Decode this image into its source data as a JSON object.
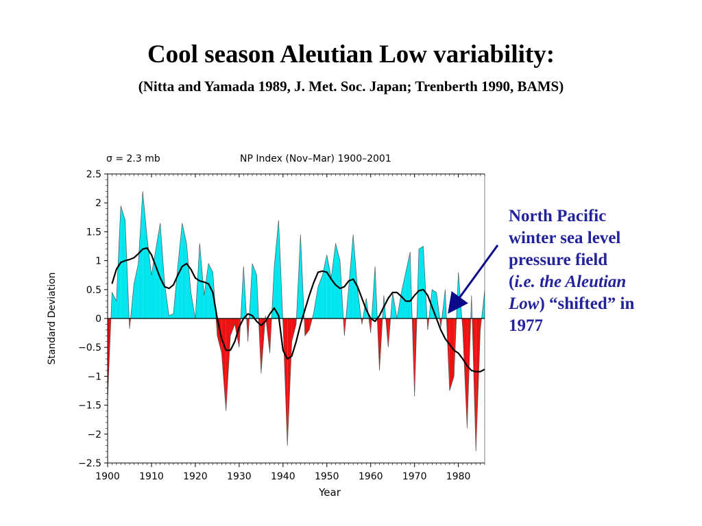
{
  "slide": {
    "title": "Cool season Aleutian Low variability:",
    "subtitle": "(Nitta and Yamada 1989, J. Met. Soc. Japan; Trenberth 1990, BAMS)"
  },
  "annotation": {
    "line1": "North Pacific",
    "line2": "winter sea level",
    "line3": "pressure field",
    "open_paren": "(",
    "ie_aleutian": "i.e. the Aleutian",
    "low": "Low",
    "shifted": ") “shifted” in",
    "year": "1977",
    "color": "#22229a"
  },
  "chart_data": {
    "type": "area",
    "title": "NP Index  (Nov–Mar) 1900–2001",
    "sigma_label": "σ = 2.3 mb",
    "xlabel": "Year",
    "ylabel": "Standard Deviation",
    "xlim": [
      1900,
      1986
    ],
    "ylim": [
      -2.5,
      2.5
    ],
    "xticks": [
      1900,
      1910,
      1920,
      1930,
      1940,
      1950,
      1960,
      1970,
      1980
    ],
    "yticks": [
      2.5,
      2,
      1.5,
      1,
      0.5,
      0,
      -0.5,
      -1,
      -1.5,
      -2,
      -2.5
    ],
    "ytick_labels": [
      "2.5",
      "2",
      "1.5",
      "1",
      "0.5",
      "0",
      "−0.5",
      "−1",
      "−1.5",
      "−2",
      "−2.5"
    ],
    "positive_color": "#00e5ee",
    "negative_color": "#ee1111",
    "grid": false,
    "series": [
      {
        "type": "area",
        "x": [
          1900,
          1901,
          1902,
          1903,
          1904,
          1905,
          1906,
          1907,
          1908,
          1909,
          1910,
          1911,
          1912,
          1913,
          1914,
          1915,
          1916,
          1917,
          1918,
          1919,
          1920,
          1921,
          1922,
          1923,
          1924,
          1925,
          1926,
          1927,
          1928,
          1929,
          1930,
          1931,
          1932,
          1933,
          1934,
          1935,
          1936,
          1937,
          1938,
          1939,
          1940,
          1941,
          1942,
          1943,
          1944,
          1945,
          1946,
          1947,
          1948,
          1949,
          1950,
          1951,
          1952,
          1953,
          1954,
          1955,
          1956,
          1957,
          1958,
          1959,
          1960,
          1961,
          1962,
          1963,
          1964,
          1965,
          1966,
          1967,
          1968,
          1969,
          1970,
          1971,
          1972,
          1973,
          1974,
          1975,
          1976,
          1977,
          1978,
          1979,
          1980,
          1981,
          1982,
          1983,
          1984,
          1985,
          1986
        ],
        "y": [
          -1.4,
          0.45,
          0.3,
          1.95,
          1.7,
          -0.18,
          0.6,
          0.95,
          2.2,
          1.4,
          0.75,
          1.2,
          1.65,
          0.6,
          0.05,
          0.08,
          0.9,
          1.65,
          1.3,
          0.45,
          0.0,
          1.3,
          0.4,
          0.95,
          0.8,
          -0.3,
          -0.6,
          -1.6,
          -0.3,
          -0.1,
          -0.5,
          0.9,
          -0.4,
          0.95,
          0.75,
          -0.95,
          0.05,
          -0.6,
          0.9,
          1.7,
          -0.1,
          -2.2,
          -0.4,
          -0.1,
          1.45,
          -0.3,
          -0.2,
          0.1,
          0.55,
          0.75,
          1.1,
          0.7,
          1.3,
          1.0,
          -0.3,
          0.55,
          1.45,
          0.5,
          -0.1,
          0.35,
          -0.25,
          0.9,
          -0.9,
          0.4,
          -0.5,
          0.45,
          0.0,
          0.45,
          0.8,
          1.15,
          -1.35,
          1.2,
          1.25,
          -0.2,
          0.5,
          0.45,
          -0.15,
          0.5,
          -1.25,
          -1.0,
          0.8,
          -0.2,
          -1.9,
          0.4,
          -2.3,
          -0.2,
          0.48
        ]
      },
      {
        "type": "line",
        "name": "smoothed",
        "x": [
          1901,
          1902,
          1903,
          1904,
          1905,
          1906,
          1907,
          1908,
          1909,
          1910,
          1911,
          1912,
          1913,
          1914,
          1915,
          1916,
          1917,
          1918,
          1919,
          1920,
          1921,
          1922,
          1923,
          1924,
          1925,
          1926,
          1927,
          1928,
          1929,
          1930,
          1931,
          1932,
          1933,
          1934,
          1935,
          1936,
          1937,
          1938,
          1939,
          1940,
          1941,
          1942,
          1943,
          1944,
          1945,
          1946,
          1947,
          1948,
          1949,
          1950,
          1951,
          1952,
          1953,
          1954,
          1955,
          1956,
          1957,
          1958,
          1959,
          1960,
          1961,
          1962,
          1963,
          1964,
          1965,
          1966,
          1967,
          1968,
          1969,
          1970,
          1971,
          1972,
          1973,
          1974,
          1975,
          1976,
          1977,
          1978,
          1979,
          1980,
          1981,
          1982,
          1983,
          1984,
          1985,
          1986
        ],
        "y": [
          0.6,
          0.85,
          0.97,
          1.0,
          1.02,
          1.05,
          1.12,
          1.2,
          1.22,
          1.1,
          0.9,
          0.7,
          0.55,
          0.52,
          0.58,
          0.75,
          0.9,
          0.95,
          0.85,
          0.7,
          0.65,
          0.63,
          0.6,
          0.45,
          0.0,
          -0.35,
          -0.55,
          -0.55,
          -0.4,
          -0.15,
          0.0,
          0.08,
          0.05,
          -0.05,
          -0.12,
          -0.05,
          0.08,
          0.18,
          0.05,
          -0.55,
          -0.7,
          -0.65,
          -0.4,
          -0.1,
          0.15,
          0.4,
          0.62,
          0.8,
          0.82,
          0.8,
          0.68,
          0.58,
          0.52,
          0.55,
          0.65,
          0.68,
          0.55,
          0.35,
          0.15,
          0.0,
          -0.05,
          0.05,
          0.2,
          0.35,
          0.45,
          0.45,
          0.38,
          0.3,
          0.3,
          0.4,
          0.48,
          0.5,
          0.4,
          0.2,
          0.0,
          -0.2,
          -0.35,
          -0.45,
          -0.55,
          -0.6,
          -0.7,
          -0.82,
          -0.9,
          -0.92,
          -0.92,
          -0.88
        ]
      }
    ]
  }
}
